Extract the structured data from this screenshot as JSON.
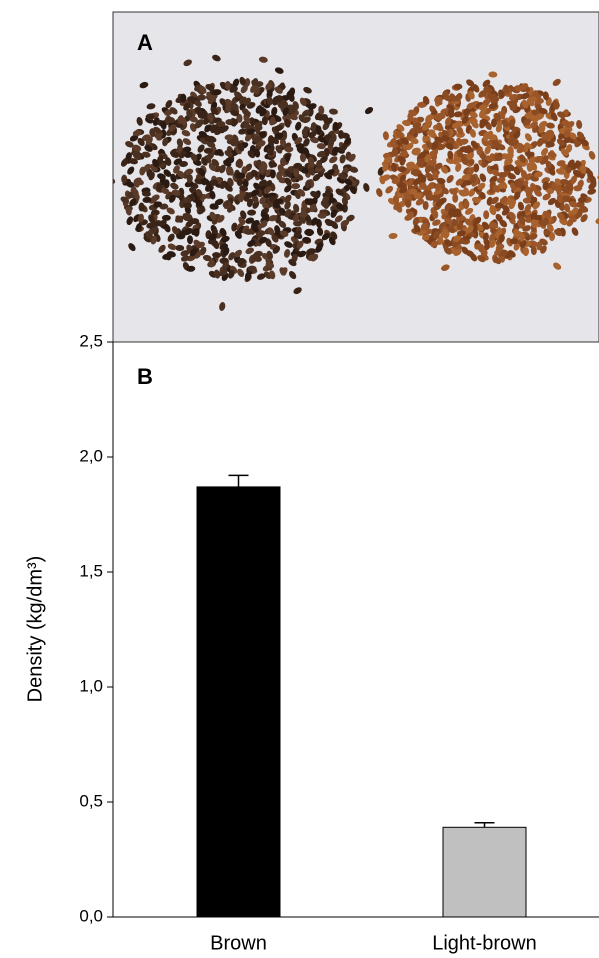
{
  "panel_a": {
    "label": "A"
  },
  "chart_data": {
    "type": "bar",
    "panel_label": "B",
    "y_label": "Density (kg/dm³)",
    "categories": [
      "Brown",
      "Light-brown"
    ],
    "values": [
      1.87,
      0.39
    ],
    "errors": [
      0.05,
      0.02
    ],
    "colors": [
      "#000000",
      "#c0c0c0"
    ],
    "ylim": [
      0,
      2.5
    ],
    "yticks": [
      {
        "value": 0,
        "label": "0,0"
      },
      {
        "value": 0.5,
        "label": "0,5"
      },
      {
        "value": 1,
        "label": "1,0"
      },
      {
        "value": 1.5,
        "label": "1,5"
      },
      {
        "value": 2,
        "label": "2,0"
      },
      {
        "value": 2.5,
        "label": "2,5"
      }
    ]
  }
}
